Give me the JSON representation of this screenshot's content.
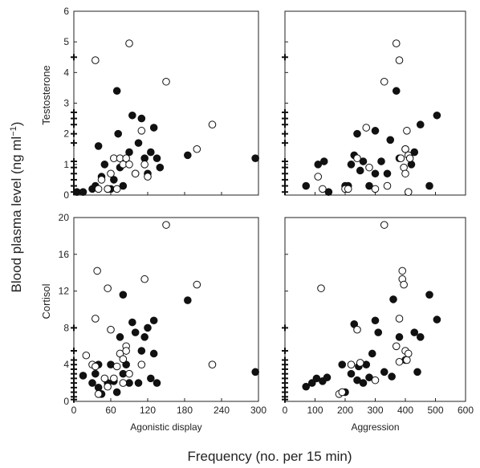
{
  "figure": {
    "ylabel_main": "Blood plasma level (ng ml",
    "ylabel_super": "−1",
    "ylabel_close": ")",
    "xlabel_main": "Frequency (no. per 15 min)"
  },
  "chart_data": [
    {
      "id": "testosterone-agonistic",
      "type": "scatter",
      "row_label": "Testosterone",
      "xlabel": "",
      "xlim": [
        0,
        300
      ],
      "ylim": [
        0,
        6
      ],
      "xticks": [],
      "yticks": [
        "0",
        "1",
        "2",
        "3",
        "4",
        "5",
        "6"
      ],
      "series": [
        {
          "marker": "filled-circle",
          "points": [
            [
              5,
              0.1
            ],
            [
              15,
              0.1
            ],
            [
              30,
              0.2
            ],
            [
              35,
              0.3
            ],
            [
              40,
              1.6
            ],
            [
              45,
              0.6
            ],
            [
              50,
              1.0
            ],
            [
              55,
              0.2
            ],
            [
              60,
              0.2
            ],
            [
              65,
              0.5
            ],
            [
              70,
              3.4
            ],
            [
              72,
              2.0
            ],
            [
              75,
              0.9
            ],
            [
              80,
              0.3
            ],
            [
              90,
              1.4
            ],
            [
              95,
              2.6
            ],
            [
              100,
              0.7
            ],
            [
              105,
              1.7
            ],
            [
              110,
              2.5
            ],
            [
              115,
              1.2
            ],
            [
              120,
              0.7
            ],
            [
              125,
              1.4
            ],
            [
              130,
              2.2
            ],
            [
              135,
              1.2
            ],
            [
              140,
              0.9
            ],
            [
              185,
              1.3
            ],
            [
              295,
              1.2
            ]
          ]
        },
        {
          "marker": "open-circle",
          "points": [
            [
              35,
              4.4
            ],
            [
              40,
              0.2
            ],
            [
              45,
              0.5
            ],
            [
              55,
              0.2
            ],
            [
              60,
              0.7
            ],
            [
              65,
              1.2
            ],
            [
              70,
              0.2
            ],
            [
              75,
              1.2
            ],
            [
              80,
              1.0
            ],
            [
              85,
              1.2
            ],
            [
              90,
              1.0
            ],
            [
              90,
              4.95
            ],
            [
              100,
              0.7
            ],
            [
              110,
              2.1
            ],
            [
              115,
              1.0
            ],
            [
              120,
              0.6
            ],
            [
              150,
              3.7
            ],
            [
              200,
              1.5
            ],
            [
              225,
              2.3
            ]
          ]
        },
        {
          "marker": "plus",
          "points": [
            [
              0,
              4.5
            ],
            [
              0,
              2.7
            ],
            [
              0,
              2.5
            ],
            [
              0,
              2.3
            ],
            [
              0,
              2.0
            ],
            [
              0,
              1.7
            ],
            [
              0,
              1.1
            ],
            [
              0,
              0.9
            ],
            [
              0,
              0.7
            ],
            [
              0,
              0.5
            ],
            [
              0,
              0.3
            ],
            [
              0,
              0.1
            ]
          ]
        }
      ]
    },
    {
      "id": "testosterone-aggression",
      "type": "scatter",
      "row_label": "",
      "xlabel": "",
      "xlim": [
        0,
        600
      ],
      "ylim": [
        0,
        6
      ],
      "xticks": [],
      "yticks": [],
      "series": [
        {
          "marker": "filled-circle",
          "points": [
            [
              70,
              0.3
            ],
            [
              110,
              1.0
            ],
            [
              130,
              1.1
            ],
            [
              145,
              0.1
            ],
            [
              200,
              0.3
            ],
            [
              210,
              0.3
            ],
            [
              220,
              1.0
            ],
            [
              230,
              1.3
            ],
            [
              240,
              2.0
            ],
            [
              250,
              0.8
            ],
            [
              260,
              1.1
            ],
            [
              280,
              0.3
            ],
            [
              300,
              0.7
            ],
            [
              300,
              2.1
            ],
            [
              320,
              1.1
            ],
            [
              340,
              0.7
            ],
            [
              350,
              1.8
            ],
            [
              370,
              3.4
            ],
            [
              380,
              1.2
            ],
            [
              400,
              1.5
            ],
            [
              420,
              1.0
            ],
            [
              430,
              1.4
            ],
            [
              450,
              2.3
            ],
            [
              480,
              0.3
            ],
            [
              505,
              2.6
            ]
          ]
        },
        {
          "marker": "open-circle",
          "points": [
            [
              110,
              0.6
            ],
            [
              125,
              0.2
            ],
            [
              200,
              0.2
            ],
            [
              210,
              0.2
            ],
            [
              240,
              1.2
            ],
            [
              270,
              2.2
            ],
            [
              280,
              0.9
            ],
            [
              300,
              0.2
            ],
            [
              330,
              3.7
            ],
            [
              340,
              0.3
            ],
            [
              370,
              4.95
            ],
            [
              380,
              4.4
            ],
            [
              385,
              1.2
            ],
            [
              395,
              0.9
            ],
            [
              400,
              0.7
            ],
            [
              400,
              1.5
            ],
            [
              405,
              2.1
            ],
            [
              410,
              1.3
            ],
            [
              415,
              1.2
            ],
            [
              410,
              0.1
            ]
          ]
        },
        {
          "marker": "plus",
          "points": [
            [
              0,
              4.5
            ],
            [
              0,
              2.7
            ],
            [
              0,
              2.5
            ],
            [
              0,
              2.3
            ],
            [
              0,
              2.0
            ],
            [
              0,
              1.7
            ],
            [
              0,
              1.1
            ],
            [
              0,
              0.9
            ],
            [
              0,
              0.7
            ],
            [
              0,
              0.5
            ],
            [
              0,
              0.3
            ],
            [
              0,
              0.1
            ]
          ]
        }
      ]
    },
    {
      "id": "cortisol-agonistic",
      "type": "scatter",
      "row_label": "Cortisol",
      "xlabel": "Agonistic display",
      "xlim": [
        0,
        300
      ],
      "ylim": [
        0,
        20
      ],
      "xticks": [
        "0",
        "60",
        "120",
        "180",
        "240",
        "300"
      ],
      "yticks": [
        "0",
        "4",
        "8",
        "12",
        "16",
        "20"
      ],
      "series": [
        {
          "marker": "filled-circle",
          "points": [
            [
              15,
              2.8
            ],
            [
              30,
              2.0
            ],
            [
              35,
              3.0
            ],
            [
              40,
              4.0
            ],
            [
              40,
              1.5
            ],
            [
              45,
              0.8
            ],
            [
              55,
              2.0
            ],
            [
              60,
              4.0
            ],
            [
              65,
              2.2
            ],
            [
              70,
              1.0
            ],
            [
              75,
              7.0
            ],
            [
              80,
              3.0
            ],
            [
              80,
              11.6
            ],
            [
              85,
              4.0
            ],
            [
              90,
              2.0
            ],
            [
              95,
              8.6
            ],
            [
              100,
              7.5
            ],
            [
              105,
              2.0
            ],
            [
              110,
              5.5
            ],
            [
              115,
              7.0
            ],
            [
              120,
              8.0
            ],
            [
              125,
              2.5
            ],
            [
              130,
              8.8
            ],
            [
              130,
              5.2
            ],
            [
              135,
              2.0
            ],
            [
              185,
              11.0
            ],
            [
              295,
              3.2
            ]
          ]
        },
        {
          "marker": "open-circle",
          "points": [
            [
              20,
              5.0
            ],
            [
              30,
              4.0
            ],
            [
              35,
              3.8
            ],
            [
              35,
              9.0
            ],
            [
              38,
              14.2
            ],
            [
              40,
              0.8
            ],
            [
              50,
              2.5
            ],
            [
              55,
              1.6
            ],
            [
              55,
              12.3
            ],
            [
              60,
              7.8
            ],
            [
              65,
              2.5
            ],
            [
              70,
              3.8
            ],
            [
              75,
              5.2
            ],
            [
              80,
              4.6
            ],
            [
              80,
              2.0
            ],
            [
              85,
              6.0
            ],
            [
              85,
              5.5
            ],
            [
              90,
              3.0
            ],
            [
              110,
              4.0
            ],
            [
              115,
              13.3
            ],
            [
              150,
              19.2
            ],
            [
              200,
              12.7
            ],
            [
              225,
              4.0
            ]
          ]
        },
        {
          "marker": "plus",
          "points": [
            [
              0,
              8.0
            ],
            [
              0,
              5.5
            ],
            [
              0,
              4.5
            ],
            [
              0,
              4.0
            ],
            [
              0,
              3.5
            ],
            [
              0,
              3.0
            ],
            [
              0,
              2.5
            ],
            [
              0,
              2.0
            ],
            [
              0,
              1.5
            ],
            [
              0,
              1.0
            ],
            [
              0,
              0.5
            ],
            [
              0,
              0.2
            ]
          ]
        }
      ]
    },
    {
      "id": "cortisol-aggression",
      "type": "scatter",
      "row_label": "",
      "xlabel": "Aggression",
      "xlim": [
        0,
        600
      ],
      "ylim": [
        0,
        20
      ],
      "xticks": [
        "0",
        "100",
        "200",
        "300",
        "400",
        "500",
        "600"
      ],
      "yticks": [],
      "series": [
        {
          "marker": "filled-circle",
          "points": [
            [
              70,
              1.6
            ],
            [
              90,
              2.0
            ],
            [
              105,
              2.5
            ],
            [
              125,
              2.2
            ],
            [
              140,
              2.6
            ],
            [
              190,
              4.0
            ],
            [
              200,
              1.0
            ],
            [
              220,
              3.0
            ],
            [
              230,
              8.4
            ],
            [
              240,
              2.3
            ],
            [
              245,
              3.8
            ],
            [
              260,
              2.0
            ],
            [
              270,
              4.0
            ],
            [
              280,
              2.6
            ],
            [
              290,
              5.2
            ],
            [
              300,
              8.8
            ],
            [
              310,
              7.5
            ],
            [
              330,
              3.2
            ],
            [
              355,
              2.7
            ],
            [
              360,
              11.1
            ],
            [
              380,
              7.0
            ],
            [
              400,
              4.5
            ],
            [
              430,
              7.5
            ],
            [
              440,
              3.2
            ],
            [
              450,
              7.0
            ],
            [
              480,
              11.6
            ],
            [
              505,
              8.9
            ]
          ]
        },
        {
          "marker": "open-circle",
          "points": [
            [
              120,
              12.3
            ],
            [
              180,
              0.8
            ],
            [
              190,
              1.0
            ],
            [
              220,
              4.0
            ],
            [
              240,
              7.8
            ],
            [
              250,
              4.2
            ],
            [
              300,
              2.3
            ],
            [
              330,
              19.2
            ],
            [
              370,
              6.0
            ],
            [
              380,
              9.0
            ],
            [
              380,
              4.3
            ],
            [
              390,
              14.2
            ],
            [
              390,
              13.3
            ],
            [
              395,
              12.7
            ],
            [
              400,
              5.5
            ],
            [
              405,
              4.5
            ],
            [
              410,
              5.2
            ]
          ]
        },
        {
          "marker": "plus",
          "points": [
            [
              0,
              8.0
            ],
            [
              0,
              5.5
            ],
            [
              0,
              4.5
            ],
            [
              0,
              4.0
            ],
            [
              0,
              3.5
            ],
            [
              0,
              3.0
            ],
            [
              0,
              2.5
            ],
            [
              0,
              2.0
            ],
            [
              0,
              1.5
            ],
            [
              0,
              1.0
            ],
            [
              0,
              0.5
            ],
            [
              0,
              0.2
            ]
          ]
        }
      ]
    }
  ]
}
